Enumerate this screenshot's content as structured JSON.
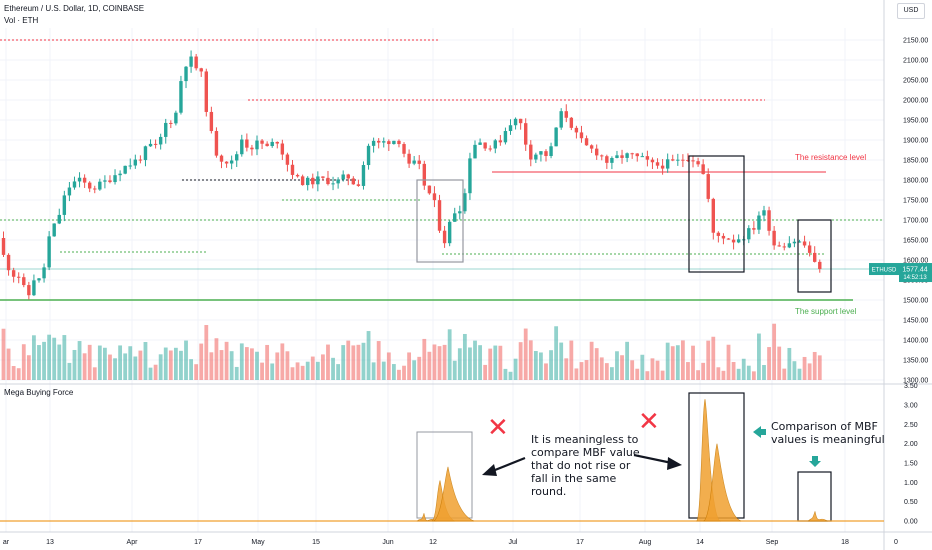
{
  "header": {
    "symbol_title": "Ethereum / U.S. Dollar, 1D, COINBASE",
    "volume_label": "Vol · ETH",
    "currency_button": "USD",
    "indicator_label": "Mega Buying Force"
  },
  "price_tag": {
    "symbol": "ETHUSD",
    "price": "1577.44",
    "countdown": "14:52:13"
  },
  "annotations": {
    "resistance_label": "The resistance level",
    "support_label": "The support level",
    "note_left": [
      "It is meaningless to",
      "compare MBF value",
      "that do not rise or",
      "fall in the same",
      "round."
    ],
    "note_right": [
      "Comparison of MBF",
      "values is meaningful"
    ],
    "cross_symbol": "✕"
  },
  "colors": {
    "up": "#26a69a",
    "down": "#ef5350",
    "resistance": "#f23645",
    "support": "#4caf50",
    "mbf": "#f0a030",
    "arrow_green": "#26a69a"
  },
  "chart_data": [
    {
      "type": "candlestick",
      "title": "Ethereum / U.S. Dollar, 1D, COINBASE",
      "x_ticks": [
        "ar",
        "13",
        "Apr",
        "17",
        "May",
        "15",
        "Jun",
        "12",
        "Jul",
        "17",
        "Aug",
        "14",
        "Sep",
        "18",
        "0"
      ],
      "y_ticks": [
        1300,
        1350,
        1400,
        1450,
        1500,
        1550,
        1600,
        1650,
        1700,
        1750,
        1800,
        1850,
        1900,
        1950,
        2000,
        2050,
        2100,
        2150
      ],
      "ylim": [
        1290,
        2170
      ],
      "last_price": 1577.44,
      "anchors": [
        [
          0,
          1655
        ],
        [
          8,
          1595
        ],
        [
          16,
          1565
        ],
        [
          22,
          1560
        ],
        [
          30,
          1500
        ],
        [
          36,
          1555
        ],
        [
          44,
          1545
        ],
        [
          52,
          1660
        ],
        [
          60,
          1700
        ],
        [
          70,
          1780
        ],
        [
          80,
          1800
        ],
        [
          95,
          1780
        ],
        [
          105,
          1790
        ],
        [
          115,
          1810
        ],
        [
          125,
          1830
        ],
        [
          140,
          1850
        ],
        [
          152,
          1885
        ],
        [
          160,
          1880
        ],
        [
          168,
          1940
        ],
        [
          178,
          1960
        ],
        [
          186,
          2090
        ],
        [
          194,
          2100
        ],
        [
          204,
          2060
        ],
        [
          212,
          1930
        ],
        [
          220,
          1860
        ],
        [
          228,
          1850
        ],
        [
          236,
          1840
        ],
        [
          244,
          1905
        ],
        [
          252,
          1880
        ],
        [
          262,
          1895
        ],
        [
          270,
          1880
        ],
        [
          280,
          1900
        ],
        [
          290,
          1840
        ],
        [
          300,
          1800
        ],
        [
          310,
          1795
        ],
        [
          320,
          1800
        ],
        [
          330,
          1800
        ],
        [
          340,
          1795
        ],
        [
          350,
          1810
        ],
        [
          360,
          1785
        ],
        [
          372,
          1895
        ],
        [
          382,
          1890
        ],
        [
          392,
          1900
        ],
        [
          402,
          1900
        ],
        [
          412,
          1830
        ],
        [
          420,
          1845
        ],
        [
          428,
          1780
        ],
        [
          436,
          1750
        ],
        [
          446,
          1640
        ],
        [
          456,
          1720
        ],
        [
          466,
          1740
        ],
        [
          474,
          1890
        ],
        [
          484,
          1895
        ],
        [
          494,
          1880
        ],
        [
          504,
          1905
        ],
        [
          512,
          1945
        ],
        [
          522,
          1950
        ],
        [
          532,
          1860
        ],
        [
          542,
          1870
        ],
        [
          552,
          1860
        ],
        [
          562,
          1965
        ],
        [
          570,
          1960
        ],
        [
          580,
          1905
        ],
        [
          590,
          1880
        ],
        [
          600,
          1870
        ],
        [
          612,
          1840
        ],
        [
          622,
          1860
        ],
        [
          634,
          1860
        ],
        [
          646,
          1850
        ],
        [
          656,
          1835
        ],
        [
          668,
          1840
        ],
        [
          680,
          1845
        ],
        [
          690,
          1860
        ],
        [
          700,
          1850
        ],
        [
          708,
          1800
        ],
        [
          716,
          1660
        ],
        [
          726,
          1660
        ],
        [
          736,
          1650
        ],
        [
          746,
          1660
        ],
        [
          756,
          1680
        ],
        [
          764,
          1730
        ],
        [
          770,
          1700
        ],
        [
          776,
          1640
        ],
        [
          786,
          1640
        ],
        [
          796,
          1650
        ],
        [
          806,
          1640
        ],
        [
          812,
          1620
        ],
        [
          820,
          1570
        ]
      ],
      "levels": {
        "resistance": 1820,
        "support": 1500,
        "dotted_red": [
          2150,
          2000
        ],
        "dotted_green": [
          1700,
          1620,
          1750,
          1615
        ],
        "dotted_black": 1800
      },
      "boxes": [
        {
          "t": 1800,
          "b": 1595,
          "color": "#9598a1"
        },
        {
          "t": 1860,
          "b": 1570,
          "color": "#131722"
        },
        {
          "t": 1700,
          "b": 1520,
          "color": "#131722"
        }
      ]
    },
    {
      "type": "area",
      "title": "Mega Buying Force",
      "y_ticks": [
        0.0,
        0.5,
        1.0,
        1.5,
        2.0,
        2.5,
        3.0,
        3.5
      ],
      "ylim": [
        0,
        3.5
      ],
      "peaks": [
        {
          "value": 0.2
        },
        {
          "value": 1.05
        },
        {
          "value": 1.4
        },
        {
          "value": 3.15
        },
        {
          "value": 2.0
        },
        {
          "value": 0.25
        }
      ]
    }
  ]
}
